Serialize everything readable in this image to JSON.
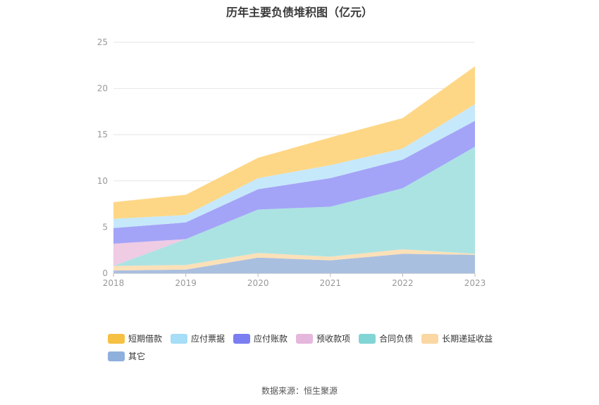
{
  "chart_data": {
    "type": "area",
    "title": "历年主要负债堆积图（亿元）",
    "x": [
      "2018",
      "2019",
      "2020",
      "2021",
      "2022",
      "2023"
    ],
    "ylim": [
      0,
      25
    ],
    "yticks": [
      0,
      5,
      10,
      15,
      20,
      25
    ],
    "stacked": true,
    "grid": true,
    "legend_position": "bottom",
    "series": [
      {
        "name": "其它",
        "color": "#a9bfe0",
        "values": [
          0.3,
          0.4,
          1.7,
          1.4,
          2.1,
          2.0
        ]
      },
      {
        "name": "长期递延收益",
        "color": "#fbe0b8",
        "values": [
          0.5,
          0.5,
          0.5,
          0.4,
          0.5,
          0.1
        ]
      },
      {
        "name": "合同负债",
        "color": "#abe3e3",
        "values": [
          0.0,
          2.8,
          4.7,
          5.4,
          6.6,
          11.6
        ]
      },
      {
        "name": "预收款项",
        "color": "#efcbe4",
        "values": [
          2.4,
          0.0,
          0.0,
          0.0,
          0.0,
          0.0
        ]
      },
      {
        "name": "应付账款",
        "color": "#a3a4f7",
        "values": [
          1.7,
          1.8,
          2.2,
          3.1,
          3.1,
          2.8
        ]
      },
      {
        "name": "应付票据",
        "color": "#c6e8fb",
        "values": [
          1.0,
          0.8,
          1.2,
          1.4,
          1.2,
          1.8
        ]
      },
      {
        "name": "短期借款",
        "color": "#fed786",
        "values": [
          1.8,
          2.2,
          2.2,
          3.0,
          3.3,
          4.1
        ]
      }
    ],
    "legend": [
      {
        "name": "短期借款",
        "color": "#f6c142"
      },
      {
        "name": "应付票据",
        "color": "#a6ddf7"
      },
      {
        "name": "应付账款",
        "color": "#7b7ef0"
      },
      {
        "name": "预收款项",
        "color": "#e6b7dc"
      },
      {
        "name": "合同负债",
        "color": "#82d5d5"
      },
      {
        "name": "长期递延收益",
        "color": "#fad7a3"
      },
      {
        "name": "其它",
        "color": "#8fb0dd"
      }
    ]
  },
  "source": "数据来源：恒生聚源"
}
